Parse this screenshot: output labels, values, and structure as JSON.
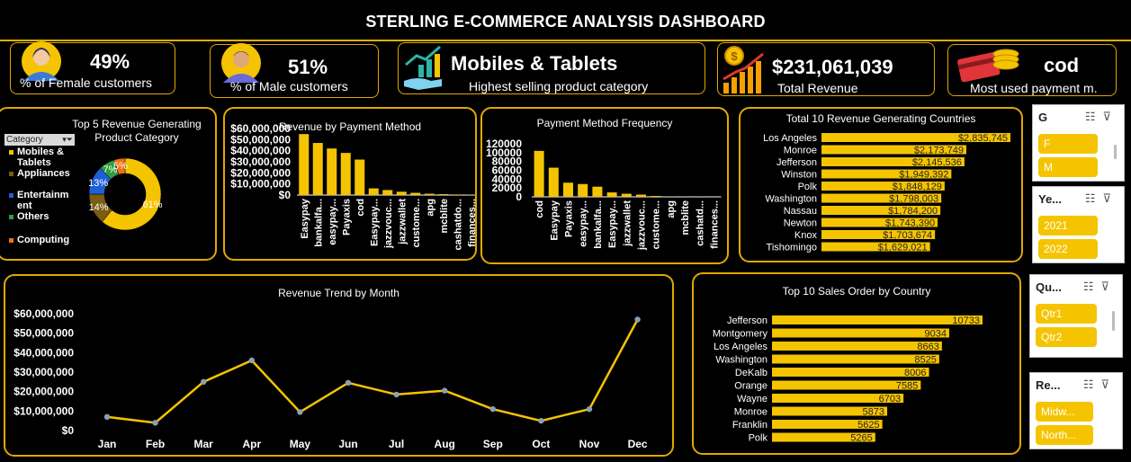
{
  "title": "STERLING E-COMMERCE ANALYSIS DASHBOARD",
  "kpis": {
    "female": {
      "value": "49%",
      "label": "% of Female  customers",
      "icon": "female-avatar-icon"
    },
    "male": {
      "value": "51%",
      "label": "% of Male  customers",
      "icon": "male-avatar-icon"
    },
    "category": {
      "value": "Mobiles & Tablets",
      "label": "Highest selling product category",
      "icon": "growth-chart-hand-icon"
    },
    "revenue": {
      "value": "$231,061,039",
      "label": "Total Revenue",
      "icon": "revenue-bars-coin-icon"
    },
    "payment": {
      "value": "cod",
      "label": "Most used payment m.",
      "icon": "card-coins-icon"
    }
  },
  "colors": {
    "accent": "#f5c400",
    "border": "#e0a800",
    "background": "#000000"
  },
  "category_filter": {
    "label": "Category"
  },
  "chart_data": [
    {
      "id": "top5",
      "type": "pie",
      "title": "Top 5 Revenue Generating Product Category",
      "categories": [
        "Mobiles & Tablets",
        "Appliances",
        "Entertainment",
        "Others",
        "Computing"
      ],
      "legend_labels": [
        "Mobiles &\nTablets",
        "Appliances",
        "Entertainm\nent",
        "Others",
        "Computing"
      ],
      "values": [
        61,
        14,
        13,
        7,
        5
      ],
      "data_labels": [
        "61%",
        "14%",
        "13%",
        "7%",
        "5%"
      ],
      "colors": [
        "#f5c400",
        "#7a5c12",
        "#1f5fd6",
        "#2e9e3e",
        "#f07010"
      ],
      "legend_position": "left"
    },
    {
      "id": "payrev",
      "type": "bar",
      "title": "Revenue by Payment Method",
      "categories": [
        "Easypay",
        "bankalfa...",
        "easypay...",
        "Payaxis",
        "cod",
        "Easypay...",
        "jazzvouc...",
        "jazzwallet",
        "custome...",
        "apg",
        "mcblite",
        "cashatdo...",
        "finances..."
      ],
      "values": [
        55000000,
        47000000,
        42000000,
        38000000,
        32000000,
        6000000,
        4500000,
        3000000,
        2000000,
        1200000,
        800000,
        500000,
        300000
      ],
      "ytick_labels": [
        "$0",
        "$10,000,000",
        "$20,000,000",
        "$30,000,000",
        "$40,000,000",
        "$50,000,000",
        "$60,000,000"
      ],
      "ylim": [
        0,
        60000000
      ]
    },
    {
      "id": "payfreq",
      "type": "bar",
      "title": "Payment Method Frequency",
      "categories": [
        "cod",
        "Easypay",
        "Payaxis",
        "easypay...",
        "bankalfa...",
        "Easypay...",
        "jazzwallet",
        "jazzvouc...",
        "custome...",
        "apg",
        "mcblite",
        "cashatd...",
        "finances..."
      ],
      "values": [
        104000,
        66000,
        32000,
        29000,
        23000,
        10000,
        7000,
        5000,
        2000,
        400,
        300,
        200,
        100
      ],
      "ytick_labels": [
        "0",
        "20000",
        "40000",
        "60000",
        "80000",
        "100000",
        "120000"
      ],
      "ylim": [
        0,
        120000
      ]
    },
    {
      "id": "countries",
      "type": "bar",
      "orientation": "horizontal",
      "title": "Total 10 Revenue Generating Countries",
      "categories": [
        "Los Angeles",
        "Monroe",
        "Jefferson",
        "Winston",
        "Polk",
        "Washington",
        "Nassau",
        "Newton",
        "Knox",
        "Tishomingo"
      ],
      "values": [
        2835745,
        2173749,
        2145536,
        1949392,
        1848129,
        1798003,
        1784200,
        1743390,
        1703674,
        1629021
      ],
      "data_labels": [
        "$2,835,745",
        "$2,173,749",
        "$2,145,536",
        "$1,949,392",
        "$1,848,129",
        "$1,798,003",
        "$1,784,200",
        "$1,743,390",
        "$1,703,674",
        "$1,629,021"
      ]
    },
    {
      "id": "trend",
      "type": "line",
      "title": "Revenue Trend by Month",
      "categories": [
        "Jan",
        "Feb",
        "Mar",
        "Apr",
        "May",
        "Jun",
        "Jul",
        "Aug",
        "Sep",
        "Oct",
        "Nov",
        "Dec"
      ],
      "values": [
        7000000,
        4000000,
        25000000,
        36000000,
        9500000,
        24500000,
        18500000,
        20500000,
        11000000,
        5000000,
        11000000,
        57000000
      ],
      "ytick_labels": [
        "$0",
        "$10,000,000",
        "$20,000,000",
        "$30,000,000",
        "$40,000,000",
        "$50,000,000",
        "$60,000,000"
      ],
      "ylim": [
        0,
        60000000
      ]
    },
    {
      "id": "orders",
      "type": "bar",
      "orientation": "horizontal",
      "title": "Top 10 Sales Order by Country",
      "categories": [
        "Jefferson",
        "Montgomery",
        "Los Angeles",
        "Washington",
        "DeKalb",
        "Orange",
        "Wayne",
        "Monroe",
        "Franklin",
        "Polk"
      ],
      "values": [
        10733,
        9034,
        8663,
        8525,
        8006,
        7585,
        6703,
        5873,
        5625,
        5265
      ],
      "data_labels": [
        "10733",
        "9034",
        "8663",
        "8525",
        "8006",
        "7585",
        "6703",
        "5873",
        "5625",
        "5265"
      ]
    }
  ],
  "slicers": [
    {
      "header": "G",
      "items": [
        "F",
        "M"
      ]
    },
    {
      "header": "Ye...",
      "items": [
        "2021",
        "2022"
      ]
    },
    {
      "header": "Qu...",
      "items": [
        "Qtr1",
        "Qtr2"
      ]
    },
    {
      "header": "Re...",
      "items": [
        "Midw...",
        "North..."
      ]
    }
  ]
}
